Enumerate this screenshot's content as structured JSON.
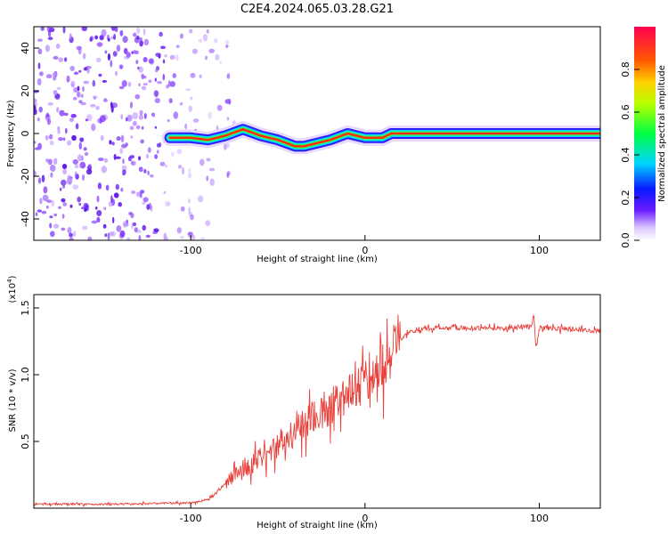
{
  "title": "C2E4.2024.065.03.28.G21",
  "chart_data": [
    {
      "type": "heatmap",
      "xlabel": "Height of straight line (km)",
      "ylabel": "Frequency (Hz)",
      "xlim": [
        -190,
        135
      ],
      "ylim": [
        -50,
        50
      ],
      "xticks": [
        -100,
        0,
        100
      ],
      "yticks": [
        -40,
        -20,
        0,
        20,
        40
      ],
      "colorbar": {
        "label": "Normalized spectral amplitude",
        "range": [
          0,
          1
        ],
        "ticks": [
          "0.0",
          "0.2",
          "0.4",
          "0.6",
          "0.8"
        ]
      },
      "ridge_frequency_hz": {
        "x": [
          -112,
          -100,
          -90,
          -80,
          -70,
          -60,
          -50,
          -40,
          -35,
          -30,
          -20,
          -10,
          0,
          10,
          15,
          50,
          100,
          135
        ],
        "y": [
          -2,
          -2,
          -3,
          -1,
          2,
          -1,
          -3,
          -6,
          -6,
          -5,
          -3,
          0,
          -2,
          -2,
          0,
          0,
          0,
          0
        ]
      },
      "noise_region_km": [
        -190,
        -85
      ]
    },
    {
      "type": "line",
      "xlabel": "Height of straight line (km)",
      "ylabel": "SNR (10 * v/v)",
      "y_multiplier": "(x10",
      "y_multiplier_exp": "4",
      "y_multiplier_close": ")",
      "xlim": [
        -190,
        135
      ],
      "ylim": [
        0,
        1.6
      ],
      "xticks": [
        -100,
        0,
        100
      ],
      "yticks": [
        0.5,
        1.0,
        1.5
      ],
      "color": "#e8403a",
      "series": [
        {
          "x": [
            -190,
            -150,
            -100,
            -95,
            -90,
            -85,
            -80,
            -75,
            -70,
            -65,
            -60,
            -55,
            -50,
            -45,
            -40,
            -35,
            -30,
            -25,
            -20,
            -15,
            -10,
            -5,
            0,
            5,
            10,
            15,
            20,
            25,
            30,
            40,
            50,
            60,
            80,
            95,
            97,
            98,
            100,
            120,
            130,
            135
          ],
          "y": [
            0.03,
            0.03,
            0.04,
            0.05,
            0.07,
            0.12,
            0.18,
            0.24,
            0.28,
            0.33,
            0.37,
            0.42,
            0.47,
            0.53,
            0.58,
            0.62,
            0.67,
            0.72,
            0.76,
            0.82,
            0.86,
            0.92,
            0.97,
            1.02,
            1.08,
            1.16,
            1.26,
            1.31,
            1.34,
            1.35,
            1.35,
            1.35,
            1.35,
            1.36,
            1.45,
            1.2,
            1.35,
            1.34,
            1.33,
            1.33
          ]
        }
      ],
      "grid": false
    }
  ]
}
